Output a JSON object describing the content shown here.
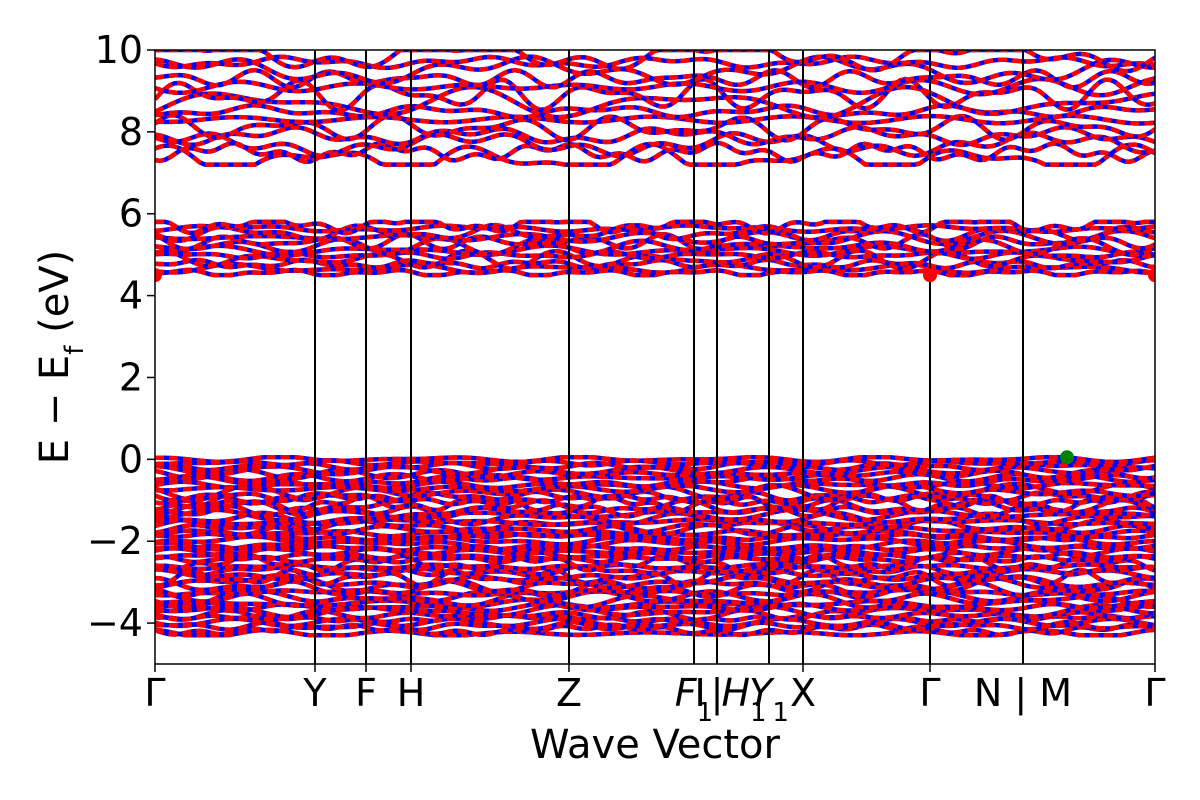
{
  "chart_data": {
    "type": "line",
    "xlabel": "Wave Vector",
    "ylabel": "E − E",
    "ylabel_sub": "f",
    "ylabel_unit": " (eV)",
    "ylim": [
      -5,
      10
    ],
    "yticks": [
      -4,
      -2,
      0,
      2,
      4,
      6,
      8,
      10
    ],
    "grid": false,
    "legend": "none",
    "kpoints": [
      {
        "label": "Γ",
        "pos": 0.0
      },
      {
        "label": "Y",
        "pos": 0.16
      },
      {
        "label": "F",
        "pos": 0.211
      },
      {
        "label": "H",
        "pos": 0.256
      },
      {
        "label": "Z",
        "pos": 0.414
      },
      {
        "label": "F",
        "sub": "1",
        "italic": true,
        "pos": 0.539,
        "line": false
      },
      {
        "label": "I",
        "pos": 0.5395,
        "align": "start",
        "line": false
      },
      {
        "label": "|",
        "pos": 0.562,
        "line": false
      },
      {
        "label": "H",
        "sub": "1",
        "italic": true,
        "pos": 0.589,
        "line": false
      },
      {
        "label": "Y",
        "sub": "1",
        "italic": true,
        "pos": 0.614,
        "line": false
      },
      {
        "label": "X",
        "pos": 0.648
      },
      {
        "label": "Γ",
        "pos": 0.775
      },
      {
        "label": "N | M",
        "pos": 0.868,
        "line": false
      },
      {
        "label": "Γ",
        "pos": 1.0
      }
    ],
    "extra_vlines": [
      0.539,
      0.562,
      0.614,
      0.868
    ],
    "colors": {
      "spin_up": "#ff0000",
      "spin_down": "#0000ff",
      "marker": "#008000",
      "axes": "#000000"
    },
    "band_groups": [
      {
        "name": "valence",
        "from": -4.3,
        "to": 0.05,
        "count": 48
      },
      {
        "name": "conduction-low",
        "from": 4.5,
        "to": 5.8,
        "count": 12
      },
      {
        "name": "conduction-high",
        "from": 7.2,
        "to": 10.0,
        "count": 14
      }
    ],
    "markers": [
      {
        "x": 0.912,
        "y": 0.05,
        "color": "#008000"
      },
      {
        "x": 0.0,
        "y": 4.5,
        "color": "#ff0000"
      },
      {
        "x": 0.775,
        "y": 4.5,
        "color": "#ff0000"
      },
      {
        "x": 1.0,
        "y": 4.5,
        "color": "#ff0000"
      }
    ]
  }
}
